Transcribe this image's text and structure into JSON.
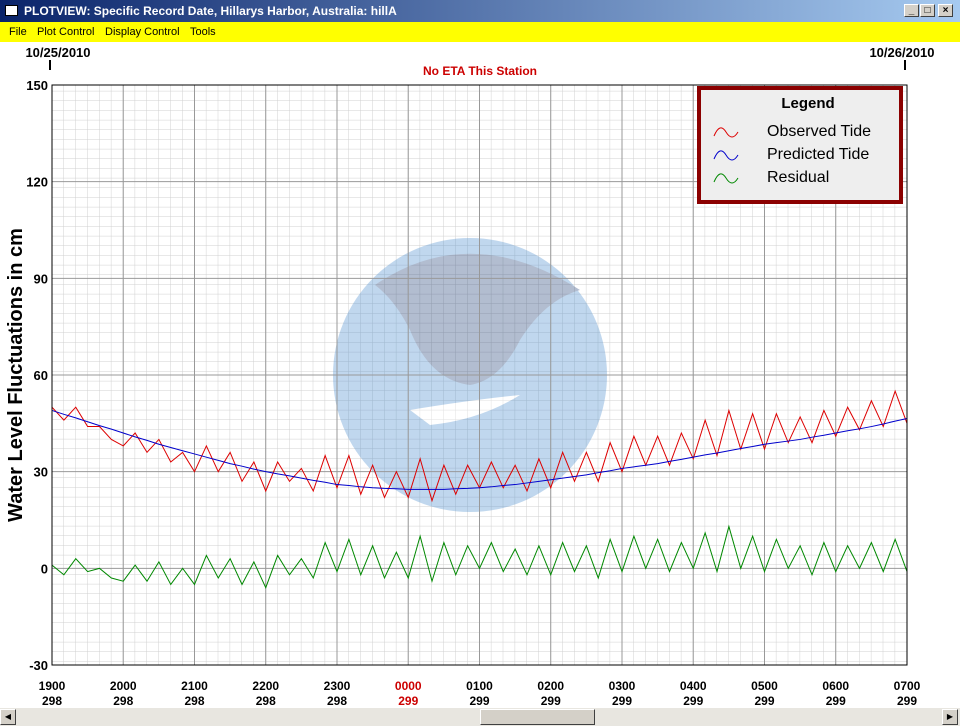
{
  "window": {
    "title": "PLOTVIEW: Specific Record Date, Hillarys Harbor, Australia: hillA",
    "menu": [
      "File",
      "Plot Control",
      "Display Control",
      "Tools"
    ]
  },
  "chart_data": {
    "type": "line",
    "title": "No ETA This Station",
    "start_date": "10/25/2010",
    "end_date": "10/26/2010",
    "y_label": "Water Level Fluctuations in cm",
    "xlim": [
      0,
      720
    ],
    "ylim": [
      -30,
      150
    ],
    "yticks": [
      -30,
      0,
      30,
      60,
      90,
      120,
      150
    ],
    "xticks": [
      {
        "value": 0,
        "label": "1900"
      },
      {
        "value": 60,
        "label": "2000"
      },
      {
        "value": 120,
        "label": "2100"
      },
      {
        "value": 180,
        "label": "2200"
      },
      {
        "value": 240,
        "label": "2300"
      },
      {
        "value": 300,
        "label": "0000"
      },
      {
        "value": 360,
        "label": "0100"
      },
      {
        "value": 420,
        "label": "0200"
      },
      {
        "value": 480,
        "label": "0300"
      },
      {
        "value": 540,
        "label": "0400"
      },
      {
        "value": 600,
        "label": "0500"
      },
      {
        "value": 660,
        "label": "0600"
      },
      {
        "value": 720,
        "label": "0700"
      }
    ],
    "xtick_days": [
      "298",
      "298",
      "298",
      "298",
      "298",
      "299",
      "299",
      "299",
      "299",
      "299",
      "299",
      "299",
      "299"
    ],
    "xtick_highlight": {
      "index": 5,
      "color": "#cc0000"
    },
    "grid": true,
    "legend": {
      "title": "Legend",
      "position": "upper right"
    },
    "x": [
      0,
      10,
      20,
      30,
      40,
      50,
      60,
      70,
      80,
      90,
      100,
      110,
      120,
      130,
      140,
      150,
      160,
      170,
      180,
      190,
      200,
      210,
      220,
      230,
      240,
      250,
      260,
      270,
      280,
      290,
      300,
      310,
      320,
      330,
      340,
      350,
      360,
      370,
      380,
      390,
      400,
      410,
      420,
      430,
      440,
      450,
      460,
      470,
      480,
      490,
      500,
      510,
      520,
      530,
      540,
      550,
      560,
      570,
      580,
      590,
      600,
      610,
      620,
      630,
      640,
      650,
      660,
      670,
      680,
      690,
      700,
      710,
      720
    ],
    "series": [
      {
        "name": "Observed Tide",
        "color": "#dd0000",
        "values": [
          50,
          46,
          50,
          44,
          44,
          40,
          38,
          42,
          36,
          40,
          33,
          36,
          30,
          38,
          30,
          36,
          27,
          33,
          24,
          33,
          27,
          31,
          24,
          35,
          25,
          35,
          23,
          32,
          22,
          30,
          22,
          34,
          21,
          32,
          23,
          32,
          25,
          33,
          25,
          32,
          24,
          34,
          25,
          36,
          27,
          36,
          27,
          39,
          30,
          41,
          32,
          41,
          32,
          42,
          34,
          46,
          35,
          49,
          37,
          48,
          37,
          48,
          39,
          47,
          39,
          49,
          41,
          50,
          43,
          52,
          44,
          55,
          45
        ]
      },
      {
        "name": "Predicted Tide",
        "color": "#0000cc",
        "values": [
          49,
          47.8,
          46.7,
          45.5,
          44.3,
          43.2,
          42,
          40.8,
          39.7,
          38.5,
          37.5,
          36.5,
          35.5,
          34.5,
          33.5,
          32.5,
          31.7,
          30.8,
          30,
          29.3,
          28.7,
          28,
          27.3,
          26.7,
          26,
          25.7,
          25.3,
          25,
          24.8,
          24.7,
          24.5,
          24.5,
          24.5,
          24.5,
          24.7,
          24.8,
          25,
          25.3,
          25.7,
          26,
          26.5,
          27,
          27.5,
          28,
          28.5,
          29,
          29.7,
          30.3,
          31,
          31.5,
          32,
          32.5,
          33.2,
          33.8,
          34.5,
          35.2,
          35.8,
          36.5,
          37.2,
          37.8,
          38.5,
          39,
          39.5,
          40,
          40.7,
          41.3,
          42,
          42.7,
          43.3,
          44,
          44.8,
          45.7,
          46.5
        ]
      },
      {
        "name": "Residual",
        "color": "#008800",
        "values": [
          1,
          -2,
          3,
          -1,
          0,
          -3,
          -4,
          1,
          -4,
          2,
          -5,
          0,
          -5,
          4,
          -3,
          3,
          -5,
          2,
          -6,
          4,
          -2,
          3,
          -3,
          8,
          -1,
          9,
          -2,
          7,
          -3,
          5,
          -3,
          10,
          -4,
          8,
          -2,
          7,
          0,
          8,
          -1,
          6,
          -2,
          7,
          -2,
          8,
          -1,
          7,
          -3,
          9,
          -1,
          10,
          0,
          9,
          -1,
          8,
          0,
          11,
          -1,
          13,
          0,
          10,
          -1,
          9,
          0,
          7,
          -2,
          8,
          -1,
          7,
          0,
          8,
          -1,
          9,
          -1
        ]
      }
    ]
  }
}
